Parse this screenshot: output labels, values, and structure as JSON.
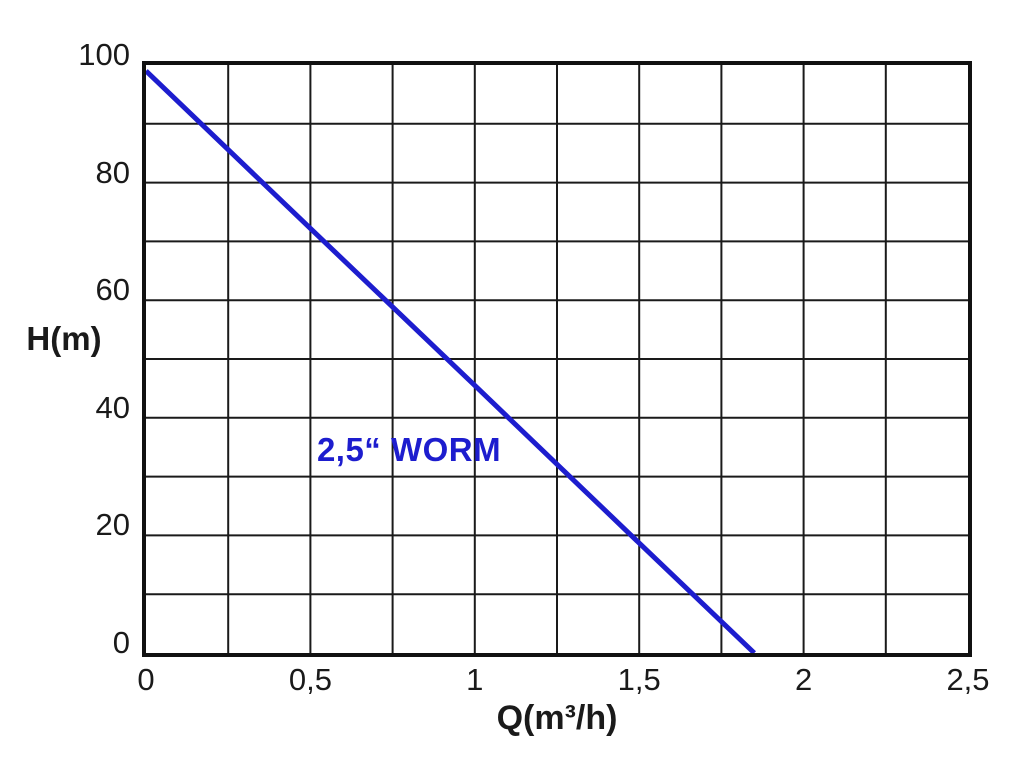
{
  "colors": {
    "background": "#ffffff",
    "axis_frame": "#111111",
    "grid": "#1a1a1a",
    "text": "#1a1a1a",
    "curve_blue": "#1d1dce"
  },
  "chart_data": {
    "type": "line",
    "title": "",
    "xlabel": "Q(m³/h)",
    "ylabel": "H(m)",
    "xlim": [
      0,
      2.5
    ],
    "ylim": [
      0,
      100
    ],
    "x_grid_step": 0.25,
    "y_grid_step": 10,
    "grid": true,
    "legend": "none",
    "x_ticks": [
      {
        "value": 0,
        "label": "0"
      },
      {
        "value": 0.5,
        "label": "0,5"
      },
      {
        "value": 1,
        "label": "1"
      },
      {
        "value": 1.5,
        "label": "1,5"
      },
      {
        "value": 2,
        "label": "2"
      },
      {
        "value": 2.5,
        "label": "2,5"
      }
    ],
    "y_ticks": [
      {
        "value": 0,
        "label": "0"
      },
      {
        "value": 20,
        "label": "20"
      },
      {
        "value": 40,
        "label": "40"
      },
      {
        "value": 60,
        "label": "60"
      },
      {
        "value": 80,
        "label": "80"
      },
      {
        "value": 100,
        "label": "100"
      }
    ],
    "series": [
      {
        "name": "2,5“ WORM",
        "color": "#1d1dce",
        "points": [
          [
            0,
            99
          ],
          [
            0.5,
            72.2
          ],
          [
            1,
            45.5
          ],
          [
            1.5,
            18.7
          ],
          [
            1.85,
            0
          ]
        ]
      }
    ],
    "annotation": {
      "text": "2,5“ WORM",
      "x": 0.8,
      "y": 34.5,
      "color": "#1d1dce"
    }
  }
}
